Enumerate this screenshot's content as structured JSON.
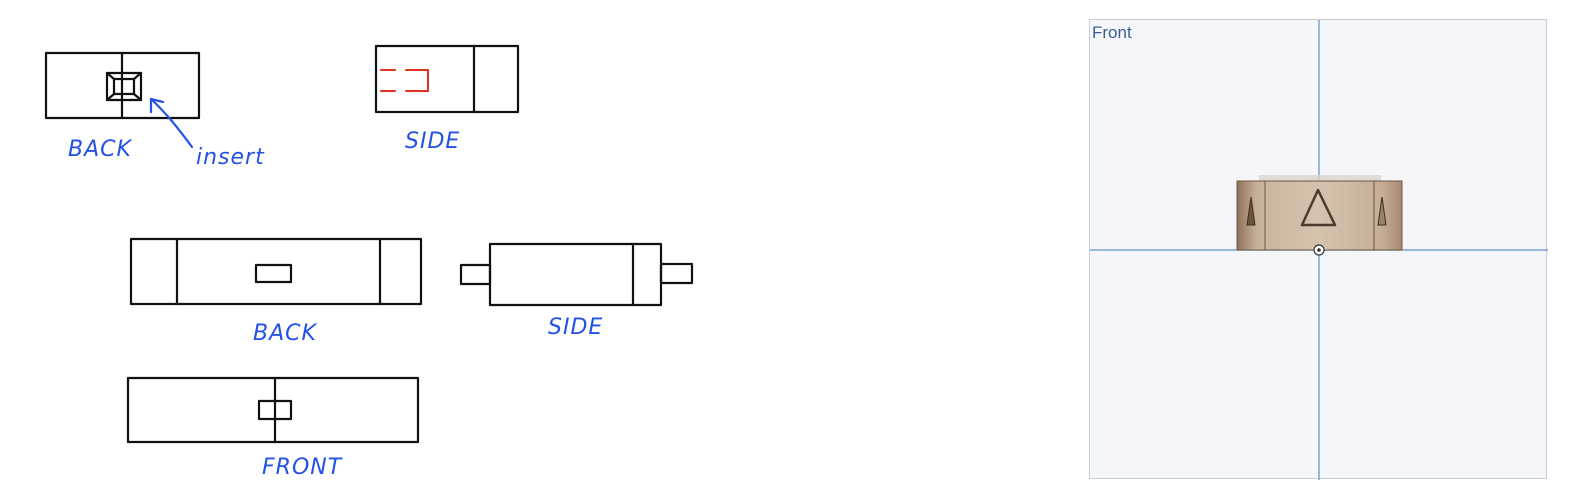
{
  "sketch": {
    "labels": {
      "back_top": "BACK",
      "insert": "insert",
      "side_top": "SIDE",
      "back_mid": "BACK",
      "side_mid": "SIDE",
      "front_bottom": "FRONT"
    }
  },
  "viewport": {
    "view_label": "Front"
  },
  "colors": {
    "ink": "#111111",
    "annotation_blue": "#2451e6",
    "hidden_red": "#e0301e",
    "axis_blue": "#7aa3d6",
    "part_brown": "#b9a086"
  }
}
